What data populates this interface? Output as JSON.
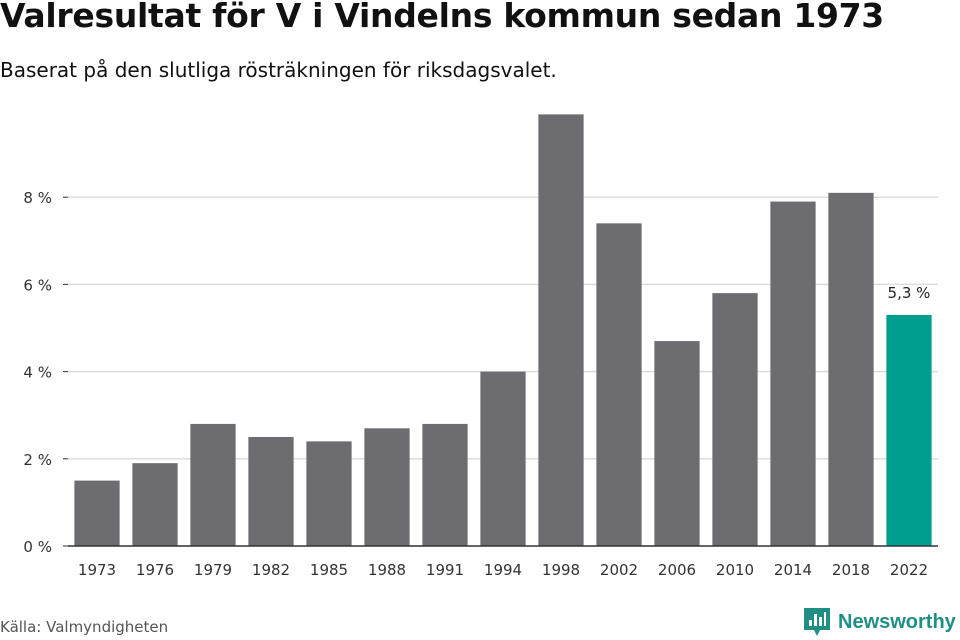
{
  "header": {
    "title": "Valresultat för V i Vindelns kommun sedan 1973",
    "subtitle": "Baserat på den slutliga rösträkningen för riksdagsvalet."
  },
  "footer": {
    "source": "Källa: Valmyndigheten",
    "brand": "Newsworthy"
  },
  "colors": {
    "bar": "#6d6c71",
    "highlight": "#009e8f",
    "grid": "#dddddd",
    "axis": "#333333",
    "brand": "#1f8f86"
  },
  "icons": {
    "brand_logo": "newsworthy-bar-chart-icon"
  },
  "chart_data": {
    "type": "bar",
    "title": "Valresultat för V i Vindelns kommun sedan 1973",
    "subtitle": "Baserat på den slutliga rösträkningen för riksdagsvalet.",
    "xlabel": "",
    "ylabel": "",
    "categories": [
      "1973",
      "1976",
      "1979",
      "1982",
      "1985",
      "1988",
      "1991",
      "1994",
      "1998",
      "2002",
      "2006",
      "2010",
      "2014",
      "2018",
      "2022"
    ],
    "values": [
      1.5,
      1.9,
      2.8,
      2.5,
      2.4,
      2.7,
      2.8,
      4.0,
      9.9,
      7.4,
      4.7,
      5.8,
      7.9,
      8.1,
      5.3
    ],
    "ylim": [
      0,
      10
    ],
    "yticks": [
      0,
      2,
      4,
      6,
      8
    ],
    "ytick_labels": [
      "0 %",
      "2 %",
      "4 %",
      "6 %",
      "8 %"
    ],
    "grid": true,
    "highlight_category": "2022",
    "annotations": [
      {
        "category": "2022",
        "text": "5,3 %"
      }
    ]
  }
}
